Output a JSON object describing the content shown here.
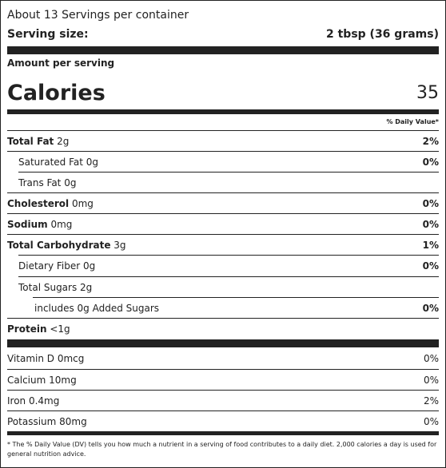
{
  "servings_per_container": "About 13 Servings per container",
  "serving_size_label": "Serving size:",
  "serving_size_value": "2 tbsp (36 grams)",
  "amount_per_serving": "Amount per serving",
  "calories_label": "Calories",
  "calories_value": "35",
  "dv_header": "% Daily Value*",
  "nutrients": [
    {
      "name": "Total Fat",
      "amount": "2g",
      "dv": "2%"
    },
    {
      "name": "Saturated Fat",
      "amount": "0g",
      "dv": "0%"
    },
    {
      "name": "Trans Fat",
      "amount": "0g",
      "dv": ""
    },
    {
      "name": "Cholesterol",
      "amount": "0mg",
      "dv": "0%"
    },
    {
      "name": "Sodium",
      "amount": "0mg",
      "dv": "0%"
    },
    {
      "name": "Total Carbohydrate",
      "amount": "3g",
      "dv": "1%"
    },
    {
      "name": "Dietary Fiber",
      "amount": "0g",
      "dv": "0%"
    },
    {
      "name": "Total Sugars",
      "amount": "2g",
      "dv": ""
    },
    {
      "name": "includes 0g Added Sugars",
      "amount": "",
      "dv": "0%"
    },
    {
      "name": "Protein",
      "amount": "<1g",
      "dv": ""
    }
  ],
  "vitamins": [
    {
      "label": "Vitamin D 0mcg",
      "dv": "0%"
    },
    {
      "label": "Calcium 10mg",
      "dv": "0%"
    },
    {
      "label": "Iron 0.4mg",
      "dv": "2%"
    },
    {
      "label": "Potassium 80mg",
      "dv": "0%"
    }
  ],
  "footnote": "* The % Daily Value (DV) tells you how much a nutrient in a serving of food contributes to a daily diet. 2,000 calories a day is used for general nutrition advice."
}
